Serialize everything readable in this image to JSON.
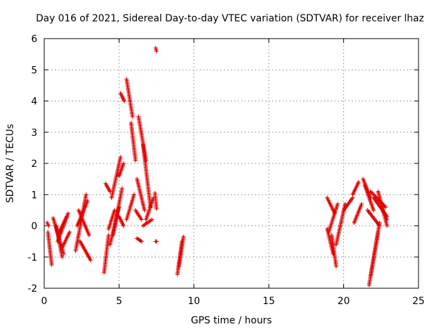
{
  "chart_data": {
    "type": "scatter",
    "title": "Day 016 of 2021, Sidereal Day-to-day VTEC variation (SDTVAR) for receiver lhaz",
    "xlabel": "GPS time / hours",
    "ylabel": "SDTVAR / TECUs",
    "xlim": [
      0,
      25
    ],
    "ylim": [
      -2,
      6
    ],
    "xticks": [
      0,
      5,
      10,
      15,
      20,
      25
    ],
    "yticks": [
      -2,
      -1,
      0,
      1,
      2,
      3,
      4,
      5,
      6
    ],
    "xtick_labels": [
      "0",
      "5",
      "10",
      "15",
      "20",
      "25"
    ],
    "ytick_labels": [
      "-2",
      "-1",
      "0",
      "1",
      "2",
      "3",
      "4",
      "5",
      "6"
    ],
    "grid": true,
    "marker": "plus",
    "color": "#e00000",
    "segments": [
      {
        "x": [
          0.2,
          0.3
        ],
        "y": [
          0.1,
          0.0
        ]
      },
      {
        "x": [
          0.25,
          0.5
        ],
        "y": [
          -0.2,
          -1.25
        ]
      },
      {
        "x": [
          0.6,
          1.3
        ],
        "y": [
          0.25,
          -0.9
        ]
      },
      {
        "x": [
          0.8,
          1.2
        ],
        "y": [
          0.0,
          -1.0
        ]
      },
      {
        "x": [
          0.9,
          1.6
        ],
        "y": [
          -0.5,
          0.4
        ]
      },
      {
        "x": [
          1.0,
          1.5
        ],
        "y": [
          -0.2,
          0.3
        ]
      },
      {
        "x": [
          1.2,
          1.7
        ],
        "y": [
          -0.7,
          -0.2
        ]
      },
      {
        "x": [
          2.1,
          2.8
        ],
        "y": [
          -0.8,
          1.0
        ]
      },
      {
        "x": [
          2.2,
          2.9
        ],
        "y": [
          0.0,
          0.8
        ]
      },
      {
        "x": [
          2.3,
          3.0
        ],
        "y": [
          0.5,
          -0.3
        ]
      },
      {
        "x": [
          2.4,
          3.1
        ],
        "y": [
          -0.5,
          -1.1
        ]
      },
      {
        "x": [
          4.0,
          4.3
        ],
        "y": [
          -1.5,
          -0.3
        ]
      },
      {
        "x": [
          4.1,
          4.4
        ],
        "y": [
          1.35,
          1.1
        ]
      },
      {
        "x": [
          4.3,
          4.7
        ],
        "y": [
          -0.1,
          0.5
        ]
      },
      {
        "x": [
          4.4,
          5.0
        ],
        "y": [
          -0.6,
          0.6
        ]
      },
      {
        "x": [
          4.5,
          5.1
        ],
        "y": [
          0.9,
          2.2
        ]
      },
      {
        "x": [
          4.6,
          5.2
        ],
        "y": [
          -0.3,
          1.2
        ]
      },
      {
        "x": [
          5.0,
          5.3
        ],
        "y": [
          1.6,
          2.0
        ]
      },
      {
        "x": [
          5.0,
          5.3
        ],
        "y": [
          0.3,
          0.0
        ]
      },
      {
        "x": [
          5.1,
          5.35
        ],
        "y": [
          4.25,
          4.0
        ]
      },
      {
        "x": [
          5.5,
          5.9
        ],
        "y": [
          4.7,
          3.5
        ]
      },
      {
        "x": [
          5.8,
          6.1
        ],
        "y": [
          3.3,
          2.1
        ]
      },
      {
        "x": [
          5.5,
          6.0
        ],
        "y": [
          0.2,
          1.0
        ]
      },
      {
        "x": [
          6.1,
          6.5
        ],
        "y": [
          0.5,
          0.2
        ]
      },
      {
        "x": [
          6.3,
          6.8
        ],
        "y": [
          3.5,
          2.1
        ]
      },
      {
        "x": [
          6.2,
          6.7
        ],
        "y": [
          1.5,
          0.5
        ]
      },
      {
        "x": [
          6.2,
          6.5
        ],
        "y": [
          -0.4,
          -0.5
        ]
      },
      {
        "x": [
          6.6,
          7.1
        ],
        "y": [
          2.6,
          0.6
        ]
      },
      {
        "x": [
          6.8,
          7.3
        ],
        "y": [
          0.2,
          0.9
        ]
      },
      {
        "x": [
          6.6,
          7.2
        ],
        "y": [
          0.0,
          0.2
        ]
      },
      {
        "x": [
          7.45,
          7.5
        ],
        "y": [
          5.7,
          5.6
        ]
      },
      {
        "x": [
          7.4,
          7.5
        ],
        "y": [
          1.05,
          0.55
        ]
      },
      {
        "x": [
          7.45,
          7.5
        ],
        "y": [
          -0.5,
          -0.5
        ]
      },
      {
        "x": [
          8.9,
          9.2
        ],
        "y": [
          -1.55,
          -0.5
        ]
      },
      {
        "x": [
          9.0,
          9.3
        ],
        "y": [
          -1.3,
          -0.35
        ]
      },
      {
        "x": [
          18.9,
          19.4
        ],
        "y": [
          0.9,
          0.4
        ]
      },
      {
        "x": [
          18.9,
          19.3
        ],
        "y": [
          -0.1,
          -0.9
        ]
      },
      {
        "x": [
          19.0,
          19.6
        ],
        "y": [
          -0.2,
          0.7
        ]
      },
      {
        "x": [
          19.2,
          19.5
        ],
        "y": [
          -0.3,
          -1.3
        ]
      },
      {
        "x": [
          19.5,
          20.1
        ],
        "y": [
          -0.6,
          0.7
        ]
      },
      {
        "x": [
          20.0,
          20.6
        ],
        "y": [
          0.5,
          0.9
        ]
      },
      {
        "x": [
          20.6,
          21.0
        ],
        "y": [
          1.0,
          1.4
        ]
      },
      {
        "x": [
          20.7,
          21.2
        ],
        "y": [
          0.1,
          0.7
        ]
      },
      {
        "x": [
          21.3,
          21.8
        ],
        "y": [
          1.5,
          0.9
        ]
      },
      {
        "x": [
          21.4,
          22.0
        ],
        "y": [
          1.3,
          0.5
        ]
      },
      {
        "x": [
          21.6,
          22.4
        ],
        "y": [
          0.5,
          0.0
        ]
      },
      {
        "x": [
          21.7,
          22.3
        ],
        "y": [
          -1.9,
          -0.2
        ]
      },
      {
        "x": [
          21.8,
          22.4
        ],
        "y": [
          -1.6,
          0.1
        ]
      },
      {
        "x": [
          21.8,
          22.8
        ],
        "y": [
          1.1,
          0.6
        ]
      },
      {
        "x": [
          22.0,
          22.9
        ],
        "y": [
          0.9,
          0.3
        ]
      },
      {
        "x": [
          22.3,
          22.9
        ],
        "y": [
          1.1,
          0.0
        ]
      },
      {
        "x": [
          22.5,
          22.9
        ],
        "y": [
          0.6,
          0.2
        ]
      }
    ]
  }
}
